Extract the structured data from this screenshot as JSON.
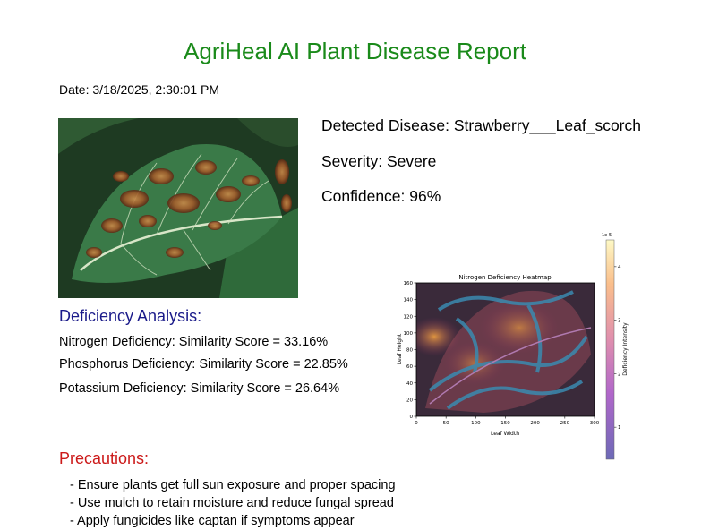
{
  "report": {
    "title": "AgriHeal AI Plant Disease Report",
    "date": "Date: 3/18/2025, 2:30:01 PM"
  },
  "detection": {
    "disease": "Detected Disease: Strawberry___Leaf_scorch",
    "severity": "Severity: Severe",
    "confidence": "Confidence: 96%"
  },
  "deficiency": {
    "heading": "Deficiency Analysis:",
    "items": [
      "Nitrogen Deficiency: Similarity Score = 33.16%",
      "Phosphorus Deficiency: Similarity Score = 22.85%",
      "Potassium Deficiency: Similarity Score = 26.64%"
    ]
  },
  "precautions": {
    "heading": "Precautions:",
    "items": [
      "- Ensure plants get full sun exposure and proper spacing",
      "- Use mulch to retain moisture and reduce fungal spread",
      "- Apply fungicides like captan if symptoms appear"
    ]
  },
  "chart_data": {
    "type": "heatmap",
    "title": "Nitrogen Deficiency Heatmap",
    "xlabel": "Leaf Width",
    "ylabel": "Leaf Height",
    "xlim": [
      0,
      300
    ],
    "ylim": [
      0,
      160
    ],
    "x_ticks": [
      "0",
      "50",
      "100",
      "150",
      "200",
      "250",
      "300"
    ],
    "y_ticks": [
      "0",
      "20",
      "40",
      "60",
      "80",
      "100",
      "120",
      "140",
      "160"
    ],
    "colorbar": {
      "label": "Deficiency Intensity",
      "scale_label": "1e-5",
      "range": [
        0.4,
        4.5
      ],
      "ticks": [
        "1",
        "2",
        "3",
        "4"
      ]
    },
    "colors": {
      "low": "#0d0887",
      "mid": "#cc4778",
      "high": "#fdf6a0"
    }
  }
}
